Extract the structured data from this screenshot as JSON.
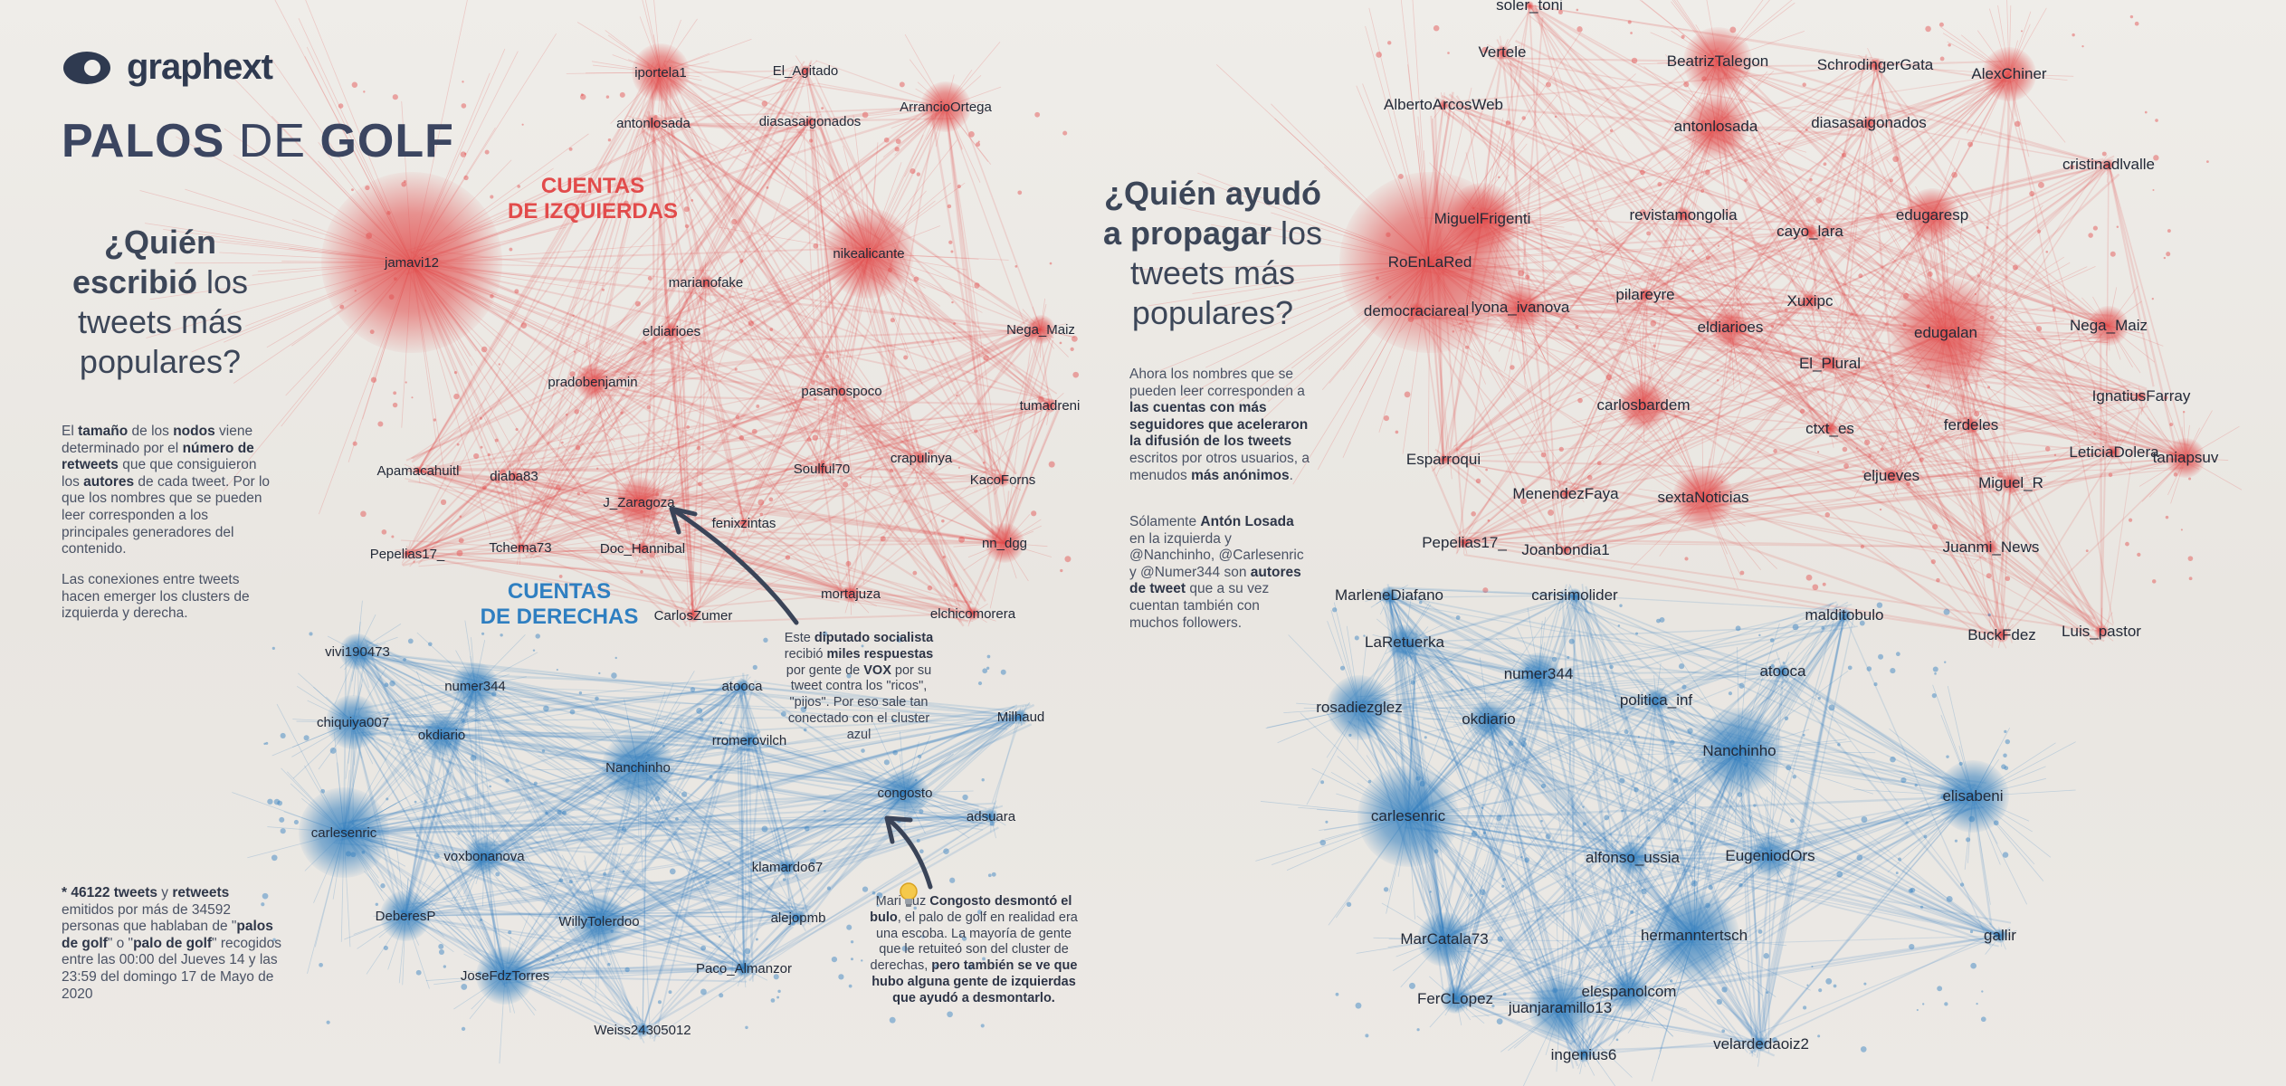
{
  "brand": {
    "name": "graphext",
    "logo_icon": "graphext-logo-icon"
  },
  "title": {
    "word1": "PALOS",
    "word2": "DE",
    "word3": "GOLF"
  },
  "left_panel": {
    "question": {
      "part1": "¿Quién",
      "part2": "escribió",
      "part3": "los",
      "part4": "tweets más",
      "part5": "populares?"
    },
    "description": [
      {
        "t": "El ",
        "b": false
      },
      {
        "t": "tamaño",
        "b": true
      },
      {
        "t": " de los ",
        "b": false
      },
      {
        "t": "nodos",
        "b": true
      },
      {
        "t": " viene determinado por el ",
        "b": false
      },
      {
        "t": "número de retweets",
        "b": true
      },
      {
        "t": " que que consiguieron los ",
        "b": false
      },
      {
        "t": "autores",
        "b": true
      },
      {
        "t": " de cada tweet. Por lo que los nombres que se pueden leer corresponden a los principales generadores del contenido.",
        "b": false
      }
    ],
    "connections_note": "Las conexiones entre tweets hacen emerger los clusters de izquierda y derecha.",
    "footnote": [
      {
        "t": "* 46122  tweets",
        "b": true
      },
      {
        "t": " y ",
        "b": false
      },
      {
        "t": "retweets",
        "b": true
      },
      {
        "t": " emitidos por más de 34592 personas que hablaban de \"",
        "b": false
      },
      {
        "t": "palos de golf",
        "b": true
      },
      {
        "t": "\" o \"",
        "b": false
      },
      {
        "t": "palo de golf",
        "b": true
      },
      {
        "t": "\" recogidos entre las 00:00 del Jueves 14 y las 23:59 del domingo 17 de Mayo de 2020",
        "b": false
      }
    ]
  },
  "middle_panel": {
    "question": {
      "part1": "¿Quién ayudó",
      "part2": "a propagar",
      "part3": "los",
      "part4": "tweets más",
      "part5": "populares?"
    },
    "description": [
      {
        "t": "Ahora los nombres que se pueden leer corresponden a ",
        "b": false
      },
      {
        "t": "las cuentas con más seguidores que aceleraron la difusión de los tweets",
        "b": true
      },
      {
        "t": " escritos por otros usuarios, a menudos ",
        "b": false
      },
      {
        "t": "más anónimos",
        "b": true
      },
      {
        "t": ".",
        "b": false
      }
    ],
    "note": [
      {
        "t": "Sólamente ",
        "b": false
      },
      {
        "t": "Antón Losada",
        "b": true
      },
      {
        "t": " en la izquierda y @Nanchinho, @Carlesenric y @Numer344 son ",
        "b": false
      },
      {
        "t": "autores de tweet",
        "b": true
      },
      {
        "t": " que a su vez cuentan también con muchos followers.",
        "b": false
      }
    ]
  },
  "cluster_labels": {
    "left_line1": "CUENTAS",
    "left_line2": "DE IZQUIERDAS",
    "right_line1": "CUENTAS",
    "right_line2": "DE DERECHAS"
  },
  "annotations": {
    "diputado": [
      {
        "t": "Este ",
        "b": false
      },
      {
        "t": "diputado socialista",
        "b": true
      },
      {
        "t": " recibió ",
        "b": false
      },
      {
        "t": "miles respuestas",
        "b": true
      },
      {
        "t": " por gente de ",
        "b": false
      },
      {
        "t": "VOX",
        "b": true
      },
      {
        "t": " por su tweet contra los \"ricos\", \"pijos\". Por eso sale tan conectado con el cluster azul",
        "b": false
      }
    ],
    "congosto": [
      {
        "t": "Mari Luz ",
        "b": false
      },
      {
        "t": "Congosto",
        "b": true
      },
      {
        "t": " ",
        "b": false
      },
      {
        "t": "desmontó el bulo",
        "b": true
      },
      {
        "t": ", el palo de golf en realidad era una escoba. La mayoría de gente que le retuiteó son del cluster de derechas, ",
        "b": false
      },
      {
        "t": "pero también se ve que hubo alguna gente de izquierdas que ayudó a desmontarlo.",
        "b": true
      }
    ],
    "bulb_icon": "lightbulb-icon"
  },
  "colors": {
    "red_cluster": "#e24a4a",
    "blue_cluster": "#2f7dbe",
    "title": "#3b4560",
    "text": "#4a5264"
  },
  "left_graph": {
    "red_nodes": [
      "iportela1",
      "El_Agitado",
      "antonlosada",
      "diasasaigonados",
      "ArrancioOrtega",
      "jamavi12",
      "nikealicante",
      "marianofake",
      "eldiarioes",
      "Nega_Maiz",
      "pradobenjamin",
      "pasanospoco",
      "tumadreni",
      "Apamacahuitl",
      "diaba83",
      "J_Zaragoza",
      "Soulful70",
      "crapulinya",
      "KacoForns",
      "Pepelias17_",
      "Tchema73",
      "Doc_Hannibal",
      "fenixzintas",
      "nn_dgg",
      "mortajuza",
      "CarlosZumer",
      "elchicomorera"
    ],
    "blue_nodes": [
      "vivi190473",
      "numer344",
      "chiquiya007",
      "okdiario",
      "atooca",
      "rromerovilch",
      "Milhaud",
      "Nanchinho",
      "congosto",
      "adsuara",
      "carlesenric",
      "voxbonanova",
      "klamardo67",
      "DeberesP",
      "WillyTolerdoo",
      "alejopmb",
      "JoseFdzTorres",
      "Paco_Almanzor",
      "Weiss24305012"
    ]
  },
  "right_graph": {
    "red_nodes": [
      "soler_toni",
      "Vertele",
      "BeatrizTalegon",
      "SchrodingerGata",
      "AlexChiner",
      "AlbertoArcosWeb",
      "antonlosada",
      "diasasaigonados",
      "cristinadlvalle",
      "MiguelFrigenti",
      "revistamongolia",
      "cayo_lara",
      "edugaresp",
      "RoEnLaRed",
      "democraciareal",
      "lyona_ivanova",
      "pilareyre",
      "Xuxipc",
      "eldiarioes",
      "edugalan",
      "Nega_Maiz",
      "El_Plural",
      "IgnatiusFarray",
      "carlosbardem",
      "ctxt_es",
      "ferdeles",
      "Esparroqui",
      "LeticiaDolera",
      "taniapsuv",
      "eljueves",
      "Miguel_R",
      "MenendezFaya",
      "sextaNoticias",
      "Pepelias17_",
      "Joanbondia1",
      "Juanmi_News",
      "Luis_pastor",
      "BuckFdez"
    ],
    "blue_nodes": [
      "MarleneDiafano",
      "carisimolider",
      "malditobulo",
      "LaRetuerka",
      "numer344",
      "atooca",
      "rosadiezglez",
      "okdiario",
      "politica_inf",
      "Nanchinho",
      "elisabeni",
      "carlesenric",
      "alfonso_ussia",
      "EugeniodOrs",
      "MarCatala73",
      "hermanntertsch",
      "gallir",
      "FerCLopez",
      "elespanolcom",
      "juanjaramillo13",
      "ingenius6",
      "velardedaoiz2"
    ]
  }
}
